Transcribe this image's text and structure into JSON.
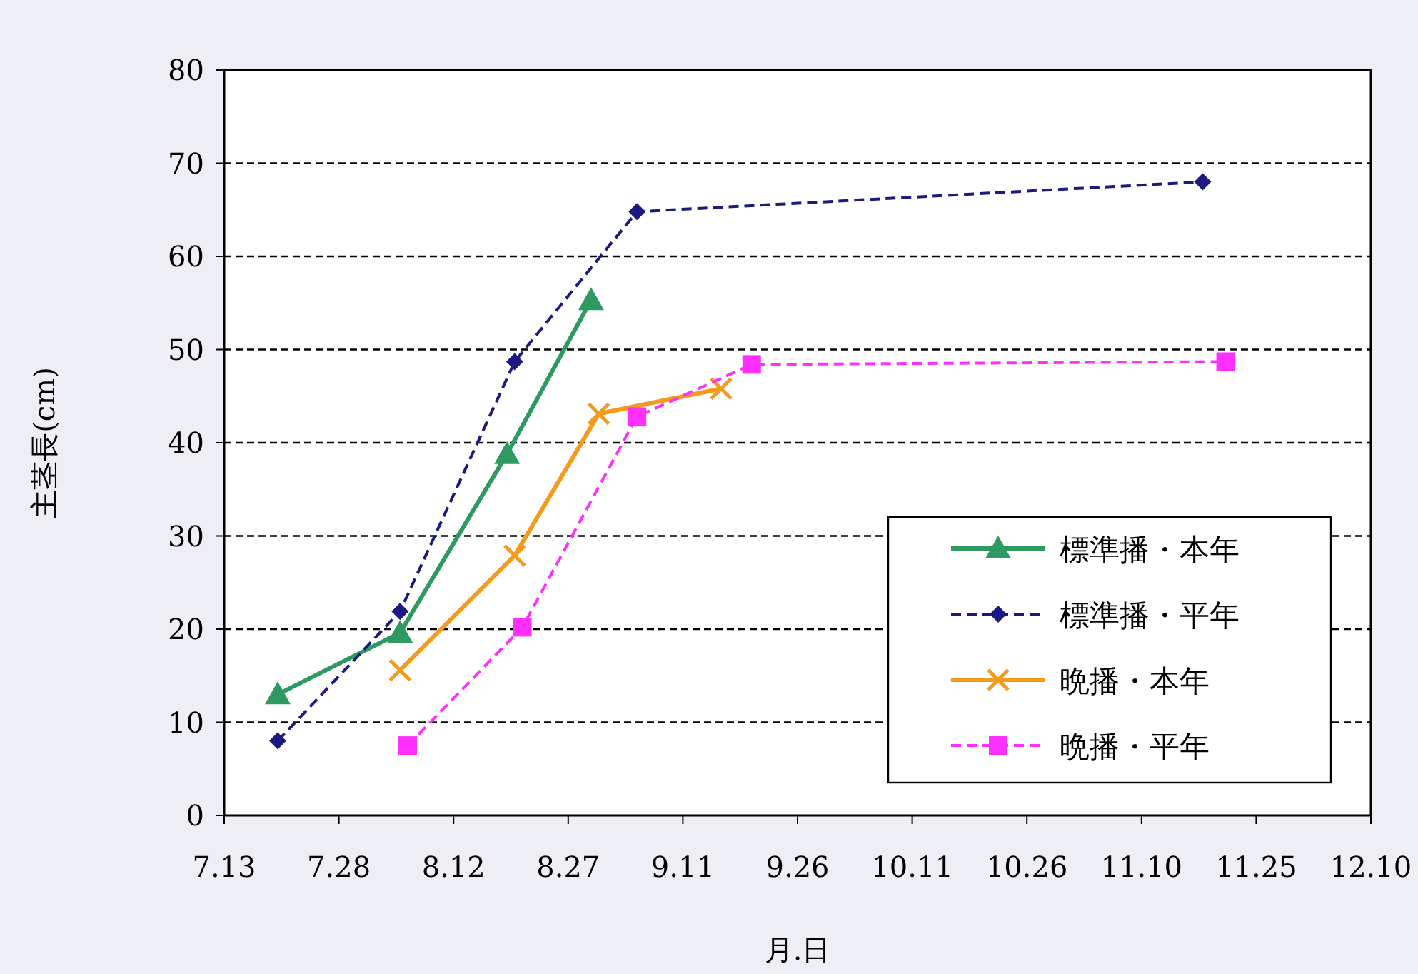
{
  "chart_data": {
    "type": "line",
    "xlabel": "月.日",
    "ylabel": "主茎長(cm)",
    "xlim": [
      "--07-13",
      "--12-10"
    ],
    "xticks": [
      {
        "value": "--07-13",
        "label": "7.13"
      },
      {
        "value": "--07-28",
        "label": "7.28"
      },
      {
        "value": "--08-12",
        "label": "8.12"
      },
      {
        "value": "--08-27",
        "label": "8.27"
      },
      {
        "value": "--09-11",
        "label": "9.11"
      },
      {
        "value": "--09-26",
        "label": "9.26"
      },
      {
        "value": "--10-11",
        "label": "10.11"
      },
      {
        "value": "--10-26",
        "label": "10.26"
      },
      {
        "value": "--11-10",
        "label": "11.10"
      },
      {
        "value": "--11-25",
        "label": "11.25"
      },
      {
        "value": "--12-10",
        "label": "12.10"
      }
    ],
    "ylim": [
      0,
      80
    ],
    "yticks": [
      0,
      10,
      20,
      30,
      40,
      50,
      60,
      70,
      80
    ],
    "grid": "y",
    "legend": "bottom right",
    "series": [
      {
        "name": "標準播・本年",
        "color": "#2e9a62",
        "marker": "triangle",
        "line_style": "solid",
        "x": [
          "--07-20",
          "--08-05",
          "--08-19",
          "--08-30"
        ],
        "values": [
          13.0,
          19.6,
          38.8,
          55.3
        ]
      },
      {
        "name": "標準播・平年",
        "color": "#1a1a80",
        "marker": "diamond",
        "line_style": "dashed",
        "x": [
          "--07-20",
          "--08-05",
          "--08-20",
          "--09-05",
          "--11-18"
        ],
        "values": [
          8.0,
          21.9,
          48.7,
          64.8,
          68.0
        ]
      },
      {
        "name": "晩播・本年",
        "color": "#f59a1a",
        "marker": "cross",
        "line_style": "solid",
        "x": [
          "--08-05",
          "--08-20",
          "--08-31",
          "--09-16"
        ],
        "values": [
          15.6,
          27.9,
          43.1,
          45.8
        ]
      },
      {
        "name": "晩播・平年",
        "color": "#ff30ff",
        "marker": "square",
        "line_style": "dashed",
        "x": [
          "--08-06",
          "--08-21",
          "--09-05",
          "--09-20",
          "--11-21"
        ],
        "values": [
          7.5,
          20.2,
          42.8,
          48.4,
          48.7
        ]
      }
    ]
  }
}
